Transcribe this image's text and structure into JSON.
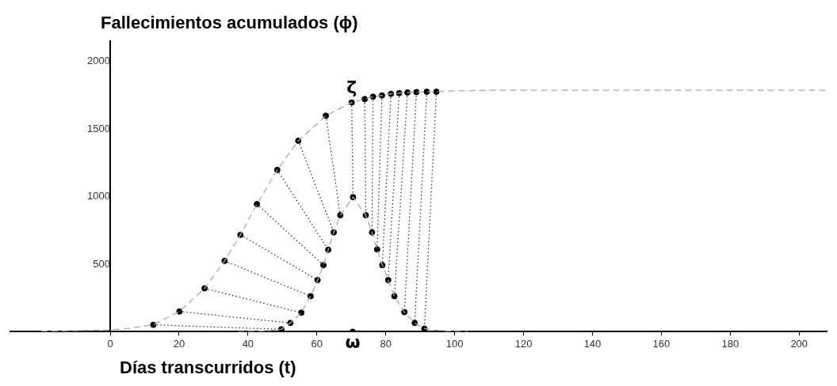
{
  "chart_data": {
    "type": "line",
    "ylabel": "Fallecimientos acumulados (ϕ)",
    "xlabel": "Días transcurridos (t)",
    "xlim": [
      -29,
      208
    ],
    "ylim": [
      0,
      2150
    ],
    "xticks": [
      0,
      20,
      40,
      60,
      80,
      100,
      120,
      140,
      160,
      180,
      200
    ],
    "yticks": [
      500,
      1000,
      1500,
      2000
    ],
    "grid": false,
    "legend": false,
    "annotations": [
      {
        "text": "ζ",
        "x": 70.1,
        "y": 1696
      },
      {
        "text": "ω",
        "x": 70.4,
        "y": 0
      }
    ],
    "series": [
      {
        "line_style": "dashed",
        "marker": "none",
        "color": "#aaaaaa",
        "x": [
          -20,
          -10,
          0,
          5,
          12.5,
          20.1,
          27.4,
          33.2,
          37.8,
          42.6,
          48.5,
          54.6,
          62.6,
          70.1,
          73.9,
          76.3,
          78.9,
          81.5,
          83.9,
          86.3,
          88.9,
          91.9,
          94.7,
          100,
          110,
          208
        ],
        "values": [
          4,
          8,
          14,
          24,
          51,
          150,
          321,
          524,
          717,
          944,
          1197,
          1413,
          1598,
          1696,
          1721,
          1739,
          1748,
          1760,
          1765,
          1770,
          1773,
          1776,
          1776,
          1782,
          1786,
          1786
        ]
      },
      {
        "line_style": "dashed",
        "marker": "none",
        "color": "#aaaaaa",
        "x": [
          37,
          42,
          46,
          49.7,
          52.3,
          55.5,
          58.2,
          60.2,
          61.9,
          63.3,
          64.9,
          66.8,
          70.5,
          74.2,
          76.0,
          77.5,
          79.0,
          80.7,
          82.5,
          85.4,
          88.4,
          91.2,
          95,
          100,
          104
        ],
        "values": [
          0,
          3,
          8,
          18,
          65,
          141,
          263,
          382,
          493,
          607,
          735,
          862,
          996,
          862,
          735,
          609,
          493,
          382,
          263,
          145,
          65,
          23,
          10,
          3,
          0
        ]
      },
      {
        "line_style": "dotted",
        "marker": "none",
        "color": "#333333",
        "x": [
          12.5,
          49.7
        ],
        "values": [
          51,
          18
        ]
      },
      {
        "line_style": "dotted",
        "marker": "none",
        "color": "#333333",
        "x": [
          20.1,
          52.3
        ],
        "values": [
          150,
          65
        ]
      },
      {
        "line_style": "dotted",
        "marker": "none",
        "color": "#333333",
        "x": [
          27.4,
          55.5
        ],
        "values": [
          321,
          141
        ]
      },
      {
        "line_style": "dotted",
        "marker": "none",
        "color": "#333333",
        "x": [
          33.2,
          58.2
        ],
        "values": [
          524,
          263
        ]
      },
      {
        "line_style": "dotted",
        "marker": "none",
        "color": "#333333",
        "x": [
          37.8,
          60.2
        ],
        "values": [
          717,
          382
        ]
      },
      {
        "line_style": "dotted",
        "marker": "none",
        "color": "#333333",
        "x": [
          42.6,
          61.9
        ],
        "values": [
          944,
          493
        ]
      },
      {
        "line_style": "dotted",
        "marker": "none",
        "color": "#333333",
        "x": [
          48.5,
          63.3
        ],
        "values": [
          1197,
          607
        ]
      },
      {
        "line_style": "dotted",
        "marker": "none",
        "color": "#333333",
        "x": [
          54.6,
          64.9
        ],
        "values": [
          1413,
          735
        ]
      },
      {
        "line_style": "dotted",
        "marker": "none",
        "color": "#333333",
        "x": [
          62.6,
          66.8
        ],
        "values": [
          1598,
          862
        ]
      },
      {
        "line_style": "dotted",
        "marker": "none",
        "color": "#333333",
        "x": [
          70.1,
          70.5
        ],
        "values": [
          1696,
          996
        ]
      },
      {
        "line_style": "dotted",
        "marker": "none",
        "color": "#333333",
        "x": [
          73.9,
          74.2
        ],
        "values": [
          1721,
          862
        ]
      },
      {
        "line_style": "dotted",
        "marker": "none",
        "color": "#333333",
        "x": [
          76.3,
          76.0
        ],
        "values": [
          1739,
          735
        ]
      },
      {
        "line_style": "dotted",
        "marker": "none",
        "color": "#333333",
        "x": [
          78.9,
          77.5
        ],
        "values": [
          1748,
          609
        ]
      },
      {
        "line_style": "dotted",
        "marker": "none",
        "color": "#333333",
        "x": [
          81.5,
          79.0
        ],
        "values": [
          1760,
          493
        ]
      },
      {
        "line_style": "dotted",
        "marker": "none",
        "color": "#333333",
        "x": [
          83.9,
          80.7
        ],
        "values": [
          1765,
          382
        ]
      },
      {
        "line_style": "dotted",
        "marker": "none",
        "color": "#333333",
        "x": [
          86.3,
          82.5
        ],
        "values": [
          1770,
          263
        ]
      },
      {
        "line_style": "dotted",
        "marker": "none",
        "color": "#333333",
        "x": [
          88.9,
          85.4
        ],
        "values": [
          1773,
          145
        ]
      },
      {
        "line_style": "dotted",
        "marker": "none",
        "color": "#333333",
        "x": [
          91.9,
          88.4
        ],
        "values": [
          1776,
          65
        ]
      },
      {
        "line_style": "dotted",
        "marker": "none",
        "color": "#333333",
        "x": [
          94.7,
          91.2
        ],
        "values": [
          1776,
          23
        ]
      },
      {
        "type": "scatter",
        "marker": "circle",
        "color": "#000000",
        "x": [
          12.5,
          20.1,
          27.4,
          33.2,
          37.8,
          42.6,
          48.5,
          54.6,
          62.6,
          70.1,
          73.9,
          76.3,
          78.9,
          81.5,
          83.9,
          86.3,
          88.9,
          91.9,
          94.7
        ],
        "values": [
          51,
          150,
          321,
          524,
          717,
          944,
          1197,
          1413,
          1598,
          1696,
          1721,
          1739,
          1748,
          1760,
          1765,
          1770,
          1773,
          1776,
          1776
        ]
      },
      {
        "type": "scatter",
        "marker": "circle",
        "color": "#000000",
        "x": [
          49.7,
          52.3,
          55.5,
          58.2,
          60.2,
          61.9,
          63.3,
          64.9,
          66.8,
          70.5,
          74.2,
          76.0,
          77.5,
          79.0,
          80.7,
          82.5,
          85.4,
          88.4,
          91.2,
          70.4
        ],
        "values": [
          18,
          65,
          141,
          263,
          382,
          493,
          607,
          735,
          862,
          996,
          862,
          735,
          609,
          493,
          382,
          263,
          145,
          65,
          23,
          0
        ]
      }
    ]
  }
}
